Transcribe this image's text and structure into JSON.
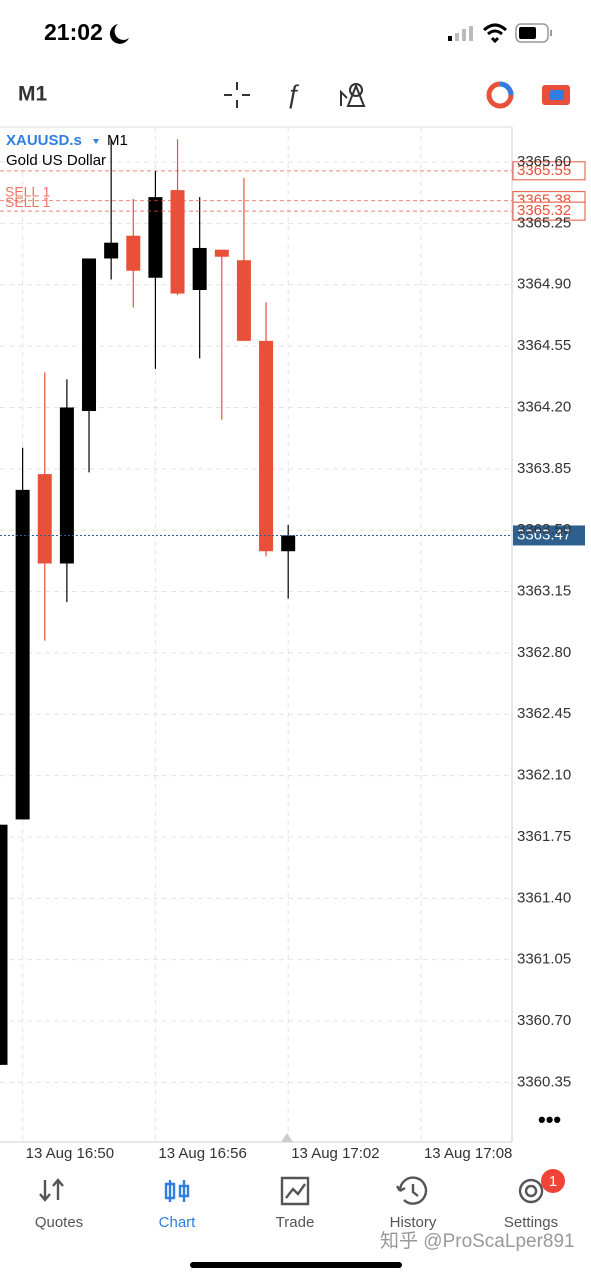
{
  "status_bar": {
    "time": "21:02"
  },
  "toolbar": {
    "timeframe": "M1"
  },
  "chart_data": {
    "type": "candlestick",
    "symbol": "XAUUSD.s",
    "timeframe": "M1",
    "description": "Gold US Dollar",
    "categories": [
      null,
      "13 Aug 16:50",
      null,
      null,
      null,
      null,
      null,
      "13 Aug 16:56",
      null,
      null,
      null,
      null,
      null,
      "13 Aug 17:02",
      null,
      null,
      null,
      null,
      null,
      "13 Aug 17:08"
    ],
    "open": [
      3360.45,
      3361.85,
      3363.82,
      3363.31,
      3364.18,
      3365.05,
      3365.18,
      3364.94,
      3365.44,
      3364.87,
      3365.1,
      3365.04,
      3364.58,
      3363.38,
      null,
      null,
      null,
      null,
      null,
      null
    ],
    "high": [
      3361.82,
      3363.97,
      3364.4,
      3364.36,
      3365.05,
      3365.73,
      3365.39,
      3365.55,
      3365.73,
      3365.4,
      3365.1,
      3365.51,
      3364.8,
      3363.53,
      null,
      null,
      null,
      null,
      null,
      null
    ],
    "low": [
      3360.45,
      3361.85,
      3362.87,
      3363.09,
      3363.83,
      3364.93,
      3364.77,
      3364.42,
      3364.84,
      3364.48,
      3364.13,
      3364.58,
      3363.35,
      3363.11,
      null,
      null,
      null,
      null,
      null,
      null
    ],
    "close": [
      3361.82,
      3363.73,
      3363.31,
      3364.2,
      3365.05,
      3365.14,
      3364.98,
      3365.4,
      3364.85,
      3365.11,
      3365.06,
      3364.58,
      3363.38,
      3363.47,
      null,
      null,
      null,
      null,
      null,
      null
    ],
    "up_color": "#000000",
    "down_color": "#e8503a",
    "ylim": [
      3360.01,
      3365.8
    ],
    "yticks": [
      {
        "value": 3365.6,
        "label": "3365.60"
      },
      3365.25,
      {
        "value": 3364.9,
        "label": "3364.90"
      },
      3364.55,
      {
        "value": 3364.2,
        "label": "3364.20"
      },
      3363.85,
      {
        "value": 3363.5,
        "label": "3363.50"
      },
      3363.15,
      {
        "value": 3362.8,
        "label": "3362.80"
      },
      3362.45,
      {
        "value": 3362.1,
        "label": "3362.10"
      },
      3361.75,
      {
        "value": 3361.4,
        "label": "3361.40"
      },
      3361.05,
      {
        "value": 3360.7,
        "label": "3360.70"
      },
      3360.35
    ],
    "grid": true,
    "price_lines": [
      {
        "value": 3365.55,
        "color": "#e8503a"
      },
      {
        "value": 3365.38,
        "color": "#e8503a",
        "label": "SELL 1"
      },
      {
        "value": 3365.32,
        "color": "#e8503a",
        "label": "SELL 1"
      }
    ],
    "current_price": {
      "value": 3363.47,
      "color": "#2d5f8f"
    }
  },
  "nav": {
    "items": [
      "Quotes",
      "Chart",
      "Trade",
      "History",
      "Settings"
    ],
    "active": 1,
    "settings_badge": 1
  },
  "watermark": "知乎 @ProScaLper891"
}
